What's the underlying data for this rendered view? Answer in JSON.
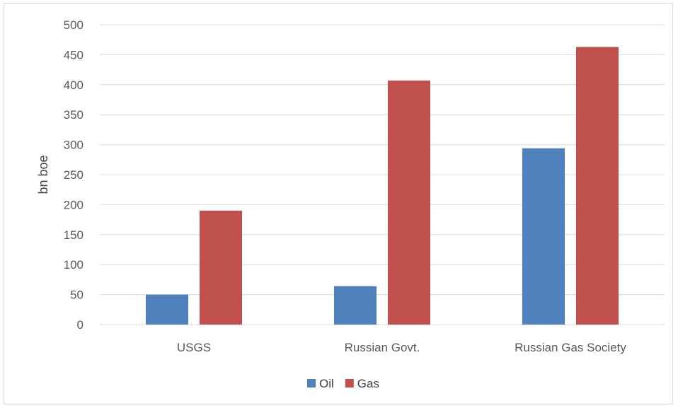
{
  "chart_data": {
    "type": "bar",
    "title": "",
    "xlabel": "",
    "ylabel": "bn boe",
    "categories": [
      "USGS",
      "Russian Govt.",
      "Russian Gas Society"
    ],
    "series": [
      {
        "name": "Oil",
        "values": [
          50,
          64,
          294
        ],
        "color": "#4f81bd"
      },
      {
        "name": "Gas",
        "values": [
          190,
          407,
          463
        ],
        "color": "#c0504d"
      }
    ],
    "ylim": [
      0,
      500
    ],
    "yticks": [
      0,
      50,
      100,
      150,
      200,
      250,
      300,
      350,
      400,
      450,
      500
    ],
    "grid": true,
    "legend_position": "bottom"
  }
}
